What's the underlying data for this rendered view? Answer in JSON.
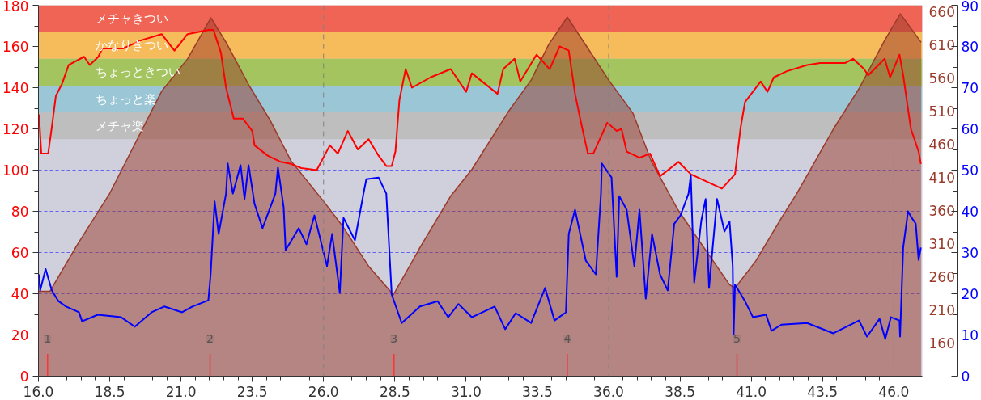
{
  "chart_data": {
    "type": "line",
    "xlim": [
      16,
      47
    ],
    "xticks": [
      {
        "value": 16,
        "label": "16.0"
      },
      {
        "value": 18.5,
        "label": "18.5"
      },
      {
        "value": 21,
        "label": "21.0"
      },
      {
        "value": 23.5,
        "label": "23.5"
      },
      {
        "value": 26,
        "label": "26.0"
      },
      {
        "value": 28.5,
        "label": "28.5"
      },
      {
        "value": 31,
        "label": "31.0"
      },
      {
        "value": 33.5,
        "label": "33.5"
      },
      {
        "value": 36,
        "label": "36.0"
      },
      {
        "value": 38.5,
        "label": "38.5"
      },
      {
        "value": 41,
        "label": "41.0"
      },
      {
        "value": 43.5,
        "label": "43.5"
      },
      {
        "value": 46,
        "label": "46.0"
      }
    ],
    "ylim": [
      0,
      180
    ],
    "yticks": [
      0,
      20,
      40,
      60,
      80,
      100,
      120,
      140,
      160,
      180
    ],
    "y2lim": [
      0,
      90
    ],
    "y2ticks": [
      0,
      10,
      20,
      30,
      40,
      50,
      60,
      70,
      80,
      90
    ],
    "y3lim": [
      110,
      670
    ],
    "y3ticks": [
      160,
      210,
      260,
      310,
      360,
      410,
      460,
      510,
      560,
      610,
      660
    ],
    "grid": "y",
    "bands": [
      {
        "axis": "y",
        "from": 167,
        "to": 180,
        "label": "メチャきつい",
        "color": "#f06455"
      },
      {
        "axis": "y",
        "from": 154,
        "to": 167,
        "label": "かなりきつい",
        "color": "#f6bb5a"
      },
      {
        "axis": "y",
        "from": 141,
        "to": 154,
        "label": "ちょっときつい",
        "color": "#a3c45f"
      },
      {
        "axis": "y",
        "from": 128,
        "to": 141,
        "label": "ちょっと楽",
        "color": "#9ac6d6"
      },
      {
        "axis": "y",
        "from": 115,
        "to": 128,
        "label": "メチャ楽",
        "color": "#bebebe"
      }
    ],
    "ref_lines": [
      {
        "axis": "x",
        "value": 26,
        "color": "#808080",
        "line_style": "dashed"
      },
      {
        "axis": "x",
        "value": 36,
        "color": "#808080",
        "line_style": "dashed"
      },
      {
        "axis": "x",
        "value": 46,
        "color": "#808080",
        "line_style": "dashed"
      }
    ],
    "annotations": [
      {
        "text": "1",
        "x": 16.32,
        "y": 0
      },
      {
        "text": "2",
        "x": 22.02,
        "y": 0
      },
      {
        "text": "3",
        "x": 28.47,
        "y": 0
      },
      {
        "text": "4",
        "x": 34.55,
        "y": 0
      },
      {
        "text": "5",
        "x": 40.5,
        "y": 0
      }
    ],
    "series": [
      {
        "type": "area",
        "axis": "y3",
        "color": "#9a3a2a",
        "x": [
          16.0,
          16.4,
          17.34,
          18.5,
          20.32,
          21.23,
          22.05,
          22.58,
          23.4,
          24.13,
          24.86,
          26.0,
          26.66,
          27.58,
          28.45,
          29.38,
          30.46,
          31.2,
          32.46,
          33.28,
          33.9,
          34.55,
          35.27,
          36.0,
          36.85,
          37.5,
          38.43,
          39.34,
          40.24,
          40.43,
          41.16,
          42.06,
          42.6,
          43.88,
          44.78,
          45.68,
          46.23,
          46.96
        ],
        "values": [
          238,
          238,
          307,
          386,
          540,
          589,
          651,
          614,
          548,
          496,
          435,
          374,
          337,
          276,
          233,
          304,
          382,
          422,
          508,
          557,
          611,
          652,
          605,
          557,
          507,
          434,
          361,
          304,
          248,
          243,
          284,
          349,
          386,
          483,
          544,
          617,
          657,
          614
        ]
      },
      {
        "color": "#ff0000",
        "x": [
          16.02,
          16.1,
          16.34,
          16.47,
          16.61,
          16.83,
          17.06,
          17.6,
          17.8,
          18.1,
          18.24,
          18.96,
          19.6,
          20.32,
          20.77,
          21.23,
          21.96,
          22.14,
          22.4,
          22.58,
          22.85,
          23.17,
          23.5,
          23.58,
          24.04,
          24.5,
          24.86,
          25.22,
          25.76,
          26.03,
          26.22,
          26.5,
          26.85,
          27.2,
          27.58,
          27.93,
          28.2,
          28.39,
          28.52,
          28.66,
          28.88,
          29.1,
          29.75,
          30.46,
          31.0,
          31.2,
          32.1,
          32.3,
          32.7,
          32.9,
          33.47,
          33.93,
          34.28,
          34.6,
          34.82,
          35.0,
          35.27,
          35.46,
          35.95,
          36.28,
          36.45,
          36.63,
          37.08,
          37.45,
          37.8,
          38.45,
          38.88,
          39.97,
          40.43,
          40.62,
          40.78,
          41.33,
          41.57,
          41.79,
          42.25,
          42.96,
          43.42,
          44.3,
          44.57,
          44.96,
          45.1,
          45.68,
          45.87,
          46.2,
          46.33,
          46.6,
          46.87,
          46.95
        ],
        "values": [
          127,
          108,
          108,
          121,
          136,
          142,
          151,
          155,
          151,
          155,
          159,
          159,
          163,
          166,
          158,
          166,
          168,
          168,
          157,
          140,
          125,
          125,
          119,
          112,
          107,
          104,
          103,
          101,
          100,
          107,
          112,
          108,
          119,
          110,
          115,
          107,
          102,
          102,
          109,
          134,
          149,
          140,
          145,
          149,
          138,
          147,
          137,
          149,
          154,
          143,
          156,
          149,
          160,
          158,
          137,
          125,
          108,
          108,
          123,
          119,
          120,
          109,
          106,
          108,
          97,
          104,
          98,
          91,
          98,
          120,
          133,
          143,
          138,
          145,
          148,
          151,
          152,
          152,
          154,
          149,
          146,
          154,
          145,
          156,
          146,
          120,
          109,
          103
        ]
      },
      {
        "axis": "y2",
        "color": "#0000ff",
        "x": [
          16.02,
          16.06,
          16.25,
          16.47,
          16.7,
          16.97,
          17.42,
          17.53,
          18.08,
          18.9,
          19.38,
          19.97,
          20.41,
          21.04,
          21.4,
          21.96,
          22.04,
          22.18,
          22.32,
          22.58,
          22.64,
          22.82,
          23.09,
          23.23,
          23.37,
          23.58,
          23.86,
          24.31,
          24.4,
          24.6,
          24.67,
          25.13,
          25.4,
          25.68,
          26.12,
          26.3,
          26.57,
          26.7,
          27.1,
          27.4,
          27.5,
          27.93,
          28.1,
          28.2,
          28.39,
          28.74,
          29.38,
          30.0,
          30.37,
          30.73,
          31.2,
          32.0,
          32.37,
          32.74,
          33.28,
          33.77,
          34.1,
          34.5,
          34.6,
          34.82,
          35.2,
          35.55,
          35.73,
          35.76,
          36.1,
          36.28,
          36.37,
          36.63,
          36.9,
          37.08,
          37.3,
          37.52,
          37.8,
          38.07,
          38.3,
          38.52,
          38.8,
          38.88,
          39.0,
          39.25,
          39.4,
          39.52,
          39.8,
          40.06,
          40.24,
          40.35,
          40.38,
          40.43,
          40.78,
          41.06,
          41.52,
          41.71,
          42.06,
          42.96,
          43.88,
          44.78,
          45.06,
          45.5,
          45.7,
          45.9,
          46.2,
          46.22,
          46.33,
          46.5,
          46.63,
          46.77,
          46.87,
          46.95
        ],
        "values": [
          24.7,
          20.8,
          26,
          20.8,
          18.2,
          16.9,
          15.5,
          13.3,
          14.9,
          14.3,
          12,
          15.5,
          16.9,
          15.5,
          16.9,
          18.4,
          24.7,
          42.4,
          34.5,
          44.3,
          51.6,
          44.3,
          51.2,
          43,
          51.2,
          41.8,
          35.9,
          44.3,
          50.6,
          41,
          30.6,
          35.9,
          32,
          39,
          26.7,
          34.5,
          20.2,
          38.4,
          33,
          44.3,
          47.8,
          48.2,
          45.7,
          44.3,
          19.8,
          12.9,
          16.9,
          18.2,
          14.3,
          17.5,
          14.3,
          16.9,
          11.4,
          15.3,
          12.9,
          21.4,
          13.5,
          15.5,
          34.5,
          40.4,
          28,
          24.7,
          44.3,
          51.6,
          48.2,
          24.1,
          43.7,
          40.4,
          26.7,
          40.4,
          18.8,
          34.5,
          24.7,
          20.8,
          37,
          39,
          44.3,
          48.8,
          22.7,
          37.8,
          43,
          21.4,
          43,
          35.1,
          37.5,
          26.7,
          9.6,
          22.2,
          18.2,
          14.3,
          14.9,
          11,
          12.5,
          12.9,
          10.4,
          13.5,
          9.6,
          13.9,
          9,
          14.3,
          13.5,
          9.6,
          31.2,
          40,
          38.4,
          37,
          28.2,
          31.2
        ]
      }
    ]
  }
}
